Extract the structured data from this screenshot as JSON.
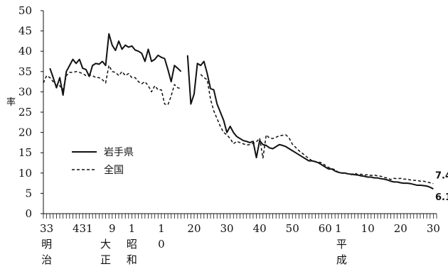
{
  "chart_data": {
    "type": "line",
    "ylabel": "率",
    "ylim": [
      0,
      50
    ],
    "yticks": [
      0,
      5,
      10,
      15,
      20,
      25,
      30,
      35,
      40,
      45,
      50
    ],
    "x_tick_labels": [
      {
        "x": 1900,
        "label": "33"
      },
      {
        "x": 1911,
        "label": "431"
      },
      {
        "x": 1920,
        "label": "9"
      },
      {
        "x": 1926,
        "label": "1"
      },
      {
        "x": 1935,
        "label": "1"
      },
      {
        "x": 1945,
        "label": "20"
      },
      {
        "x": 1955,
        "label": "30"
      },
      {
        "x": 1965,
        "label": "40"
      },
      {
        "x": 1975,
        "label": "50"
      },
      {
        "x": 1985,
        "label": "60"
      },
      {
        "x": 1989,
        "label": "1"
      },
      {
        "x": 1998,
        "label": "10"
      },
      {
        "x": 2008,
        "label": "20"
      },
      {
        "x": 2018,
        "label": "30"
      }
    ],
    "x_tick_sublabels": [
      {
        "x": 1935,
        "label": "0"
      }
    ],
    "era_labels": [
      {
        "x": 1900,
        "lines": [
          "明",
          "治"
        ]
      },
      {
        "x": 1918,
        "lines": [
          "大",
          "正"
        ]
      },
      {
        "x": 1926,
        "lines": [
          "昭",
          "和"
        ]
      },
      {
        "x": 1990,
        "lines": [
          "平",
          "成"
        ]
      }
    ],
    "series": [
      {
        "name": "岩手県",
        "style": "solid",
        "segments": [
          [
            [
              1901,
              35.8
            ],
            [
              1902,
              33.5
            ],
            [
              1903,
              31.0
            ],
            [
              1904,
              33.5
            ],
            [
              1905,
              29.2
            ],
            [
              1906,
              35.0
            ],
            [
              1907,
              36.5
            ],
            [
              1908,
              38.0
            ],
            [
              1909,
              37.0
            ],
            [
              1910,
              38.0
            ],
            [
              1911,
              35.8
            ],
            [
              1912,
              35.5
            ],
            [
              1913,
              33.8
            ],
            [
              1914,
              36.5
            ],
            [
              1915,
              37.0
            ],
            [
              1916,
              36.8
            ],
            [
              1917,
              37.5
            ],
            [
              1918,
              36.5
            ],
            [
              1919,
              44.3
            ],
            [
              1920,
              41.5
            ],
            [
              1921,
              40.2
            ],
            [
              1922,
              42.5
            ],
            [
              1923,
              40.5
            ],
            [
              1924,
              41.5
            ],
            [
              1925,
              41.0
            ],
            [
              1926,
              41.3
            ],
            [
              1927,
              40.3
            ],
            [
              1928,
              40.0
            ],
            [
              1929,
              39.5
            ],
            [
              1930,
              37.5
            ],
            [
              1931,
              40.5
            ],
            [
              1932,
              37.5
            ],
            [
              1933,
              38.0
            ],
            [
              1934,
              39.0
            ],
            [
              1935,
              38.5
            ],
            [
              1936,
              38.2
            ],
            [
              1937,
              35.5
            ],
            [
              1938,
              32.5
            ],
            [
              1939,
              36.5
            ],
            [
              1940,
              35.8
            ],
            [
              1941,
              35.0
            ]
          ],
          [
            [
              1943,
              39.0
            ],
            [
              1944,
              27.0
            ],
            [
              1945,
              29.5
            ],
            [
              1946,
              37.0
            ],
            [
              1947,
              36.5
            ],
            [
              1948,
              37.5
            ],
            [
              1949,
              34.5
            ],
            [
              1950,
              30.8
            ],
            [
              1951,
              30.5
            ],
            [
              1952,
              27.0
            ],
            [
              1953,
              25.0
            ],
            [
              1954,
              23.0
            ],
            [
              1955,
              20.0
            ],
            [
              1956,
              21.5
            ],
            [
              1957,
              20.0
            ],
            [
              1958,
              19.0
            ],
            [
              1959,
              18.5
            ],
            [
              1960,
              18.0
            ],
            [
              1961,
              17.8
            ],
            [
              1962,
              17.5
            ],
            [
              1963,
              17.8
            ],
            [
              1964,
              13.8
            ],
            [
              1965,
              18.0
            ],
            [
              1966,
              17.0
            ],
            [
              1967,
              16.8
            ],
            [
              1968,
              16.2
            ],
            [
              1969,
              16.0
            ],
            [
              1970,
              16.5
            ],
            [
              1971,
              17.0
            ],
            [
              1972,
              16.8
            ],
            [
              1973,
              16.5
            ],
            [
              1974,
              16.0
            ],
            [
              1975,
              15.5
            ],
            [
              1976,
              15.0
            ],
            [
              1977,
              14.5
            ],
            [
              1978,
              14.0
            ],
            [
              1979,
              13.5
            ],
            [
              1980,
              13.0
            ],
            [
              1981,
              13.0
            ],
            [
              1982,
              12.8
            ],
            [
              1983,
              12.5
            ],
            [
              1984,
              12.0
            ],
            [
              1985,
              11.5
            ],
            [
              1986,
              11.0
            ],
            [
              1987,
              11.0
            ],
            [
              1988,
              10.5
            ],
            [
              1989,
              10.2
            ],
            [
              1990,
              10.0
            ],
            [
              1991,
              10.0
            ],
            [
              1992,
              9.8
            ],
            [
              1993,
              9.7
            ],
            [
              1994,
              9.6
            ],
            [
              1995,
              9.5
            ],
            [
              1996,
              9.3
            ],
            [
              1997,
              9.2
            ],
            [
              1998,
              9.0
            ],
            [
              1999,
              9.0
            ],
            [
              2000,
              8.8
            ],
            [
              2001,
              8.8
            ],
            [
              2002,
              8.6
            ],
            [
              2003,
              8.5
            ],
            [
              2004,
              8.3
            ],
            [
              2005,
              8.0
            ],
            [
              2006,
              7.8
            ],
            [
              2007,
              7.8
            ],
            [
              2008,
              7.6
            ],
            [
              2009,
              7.5
            ],
            [
              2010,
              7.5
            ],
            [
              2011,
              7.4
            ],
            [
              2012,
              7.2
            ],
            [
              2013,
              7.0
            ],
            [
              2014,
              7.0
            ],
            [
              2015,
              6.9
            ],
            [
              2016,
              6.8
            ],
            [
              2017,
              6.5
            ],
            [
              2018,
              6.1
            ]
          ]
        ]
      },
      {
        "name": "全国",
        "style": "dashed",
        "segments": [
          [
            [
              1899,
              32.2
            ],
            [
              1900,
              34.0
            ],
            [
              1901,
              33.5
            ],
            [
              1902,
              32.5
            ],
            [
              1903,
              31.5
            ],
            [
              1904,
              31.5
            ],
            [
              1905,
              30.5
            ],
            [
              1906,
              34.0
            ],
            [
              1907,
              34.8
            ],
            [
              1908,
              34.8
            ],
            [
              1909,
              35.0
            ],
            [
              1910,
              34.8
            ],
            [
              1911,
              34.5
            ],
            [
              1912,
              34.0
            ],
            [
              1913,
              34.2
            ],
            [
              1914,
              34.0
            ],
            [
              1915,
              33.5
            ],
            [
              1916,
              33.5
            ],
            [
              1917,
              33.0
            ],
            [
              1918,
              32.2
            ],
            [
              1919,
              36.5
            ],
            [
              1920,
              35.0
            ],
            [
              1921,
              34.8
            ],
            [
              1922,
              34.0
            ],
            [
              1923,
              35.0
            ],
            [
              1924,
              34.0
            ],
            [
              1925,
              34.5
            ],
            [
              1926,
              33.5
            ],
            [
              1927,
              33.5
            ],
            [
              1928,
              32.5
            ],
            [
              1929,
              32.0
            ],
            [
              1930,
              32.5
            ],
            [
              1931,
              31.5
            ],
            [
              1932,
              30.0
            ],
            [
              1933,
              31.5
            ],
            [
              1934,
              30.5
            ],
            [
              1935,
              30.5
            ],
            [
              1936,
              27.0
            ],
            [
              1937,
              26.8
            ],
            [
              1938,
              29.0
            ],
            [
              1939,
              31.8
            ],
            [
              1940,
              31.0
            ],
            [
              1941,
              30.8
            ]
          ],
          [
            [
              1947,
              34.3
            ],
            [
              1948,
              33.5
            ],
            [
              1949,
              33.0
            ],
            [
              1950,
              28.2
            ],
            [
              1951,
              25.3
            ],
            [
              1952,
              23.4
            ],
            [
              1953,
              21.5
            ],
            [
              1954,
              20.0
            ],
            [
              1955,
              19.4
            ],
            [
              1956,
              18.5
            ],
            [
              1957,
              17.2
            ],
            [
              1958,
              17.8
            ],
            [
              1959,
              17.5
            ],
            [
              1960,
              17.2
            ],
            [
              1961,
              16.9
            ],
            [
              1962,
              17.0
            ],
            [
              1963,
              17.3
            ],
            [
              1964,
              17.7
            ],
            [
              1965,
              18.6
            ],
            [
              1966,
              13.7
            ],
            [
              1967,
              19.4
            ],
            [
              1968,
              18.6
            ],
            [
              1969,
              18.5
            ],
            [
              1970,
              18.8
            ],
            [
              1971,
              19.2
            ],
            [
              1972,
              19.3
            ],
            [
              1973,
              19.4
            ],
            [
              1974,
              18.6
            ],
            [
              1975,
              17.1
            ],
            [
              1976,
              16.3
            ],
            [
              1977,
              15.5
            ],
            [
              1978,
              14.9
            ],
            [
              1979,
              14.2
            ],
            [
              1980,
              13.6
            ],
            [
              1981,
              13.0
            ],
            [
              1982,
              12.8
            ],
            [
              1983,
              12.7
            ],
            [
              1984,
              12.5
            ],
            [
              1985,
              11.9
            ],
            [
              1986,
              11.4
            ],
            [
              1987,
              11.1
            ],
            [
              1988,
              10.8
            ],
            [
              1989,
              10.2
            ],
            [
              1990,
              10.0
            ],
            [
              1991,
              9.9
            ],
            [
              1992,
              9.8
            ],
            [
              1993,
              9.6
            ],
            [
              1994,
              10.0
            ],
            [
              1995,
              9.6
            ],
            [
              1996,
              9.7
            ],
            [
              1997,
              9.5
            ],
            [
              1998,
              9.6
            ],
            [
              1999,
              9.4
            ],
            [
              2000,
              9.5
            ],
            [
              2001,
              9.3
            ],
            [
              2002,
              9.2
            ],
            [
              2003,
              8.9
            ],
            [
              2004,
              8.8
            ],
            [
              2005,
              8.4
            ],
            [
              2006,
              8.7
            ],
            [
              2007,
              8.6
            ],
            [
              2008,
              8.7
            ],
            [
              2009,
              8.5
            ],
            [
              2010,
              8.5
            ],
            [
              2011,
              8.3
            ],
            [
              2012,
              8.2
            ],
            [
              2013,
              8.2
            ],
            [
              2014,
              8.0
            ],
            [
              2015,
              8.0
            ],
            [
              2016,
              7.8
            ],
            [
              2017,
              7.6
            ],
            [
              2018,
              7.4
            ]
          ]
        ]
      }
    ],
    "end_labels": [
      {
        "series": "全国",
        "label": "7.4",
        "value": 7.4
      },
      {
        "series": "岩手県",
        "label": "6.1",
        "value": 6.1
      }
    ],
    "legend": {
      "position": "center-left",
      "entries": [
        {
          "label": "岩手県",
          "style": "solid"
        },
        {
          "label": "全国",
          "style": "dashed"
        }
      ]
    },
    "xlim": [
      1899,
      2019
    ],
    "grid": false
  }
}
